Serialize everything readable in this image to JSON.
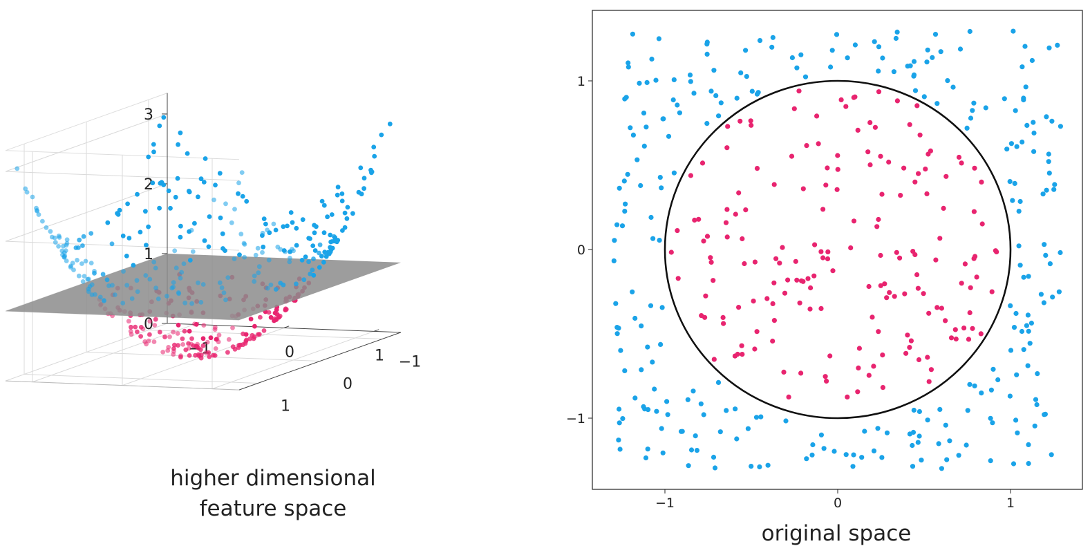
{
  "captions": {
    "left_line1": "higher dimensional",
    "left_line2": "feature space",
    "right": "original space"
  },
  "colors": {
    "inner_class": "#e8246f",
    "outer_class": "#1aa3e8",
    "plane": "#8c8c8c",
    "circle": "#111111"
  },
  "chart_data": [
    {
      "type": "scatter",
      "projection": "3d",
      "title": "",
      "xlabel": "",
      "ylabel": "",
      "zlabel": "",
      "x_ticks": [
        "−1",
        "0",
        "1"
      ],
      "y_ticks": [
        "1",
        "0",
        "−1"
      ],
      "z_ticks": [
        "0",
        "1",
        "2",
        "3"
      ],
      "xlim": [
        -1.3,
        1.3
      ],
      "ylim": [
        -1.3,
        1.3
      ],
      "zlim": [
        0,
        3.3
      ],
      "z_function": "x^2 + y^2",
      "separating_plane_z": 1,
      "grid": true,
      "series": [
        {
          "color": "#e8246f",
          "rule": "x^2 + y^2 < 1"
        },
        {
          "color": "#1aa3e8",
          "rule": "x^2 + y^2 >= 1"
        }
      ]
    },
    {
      "type": "scatter",
      "title": "",
      "xlabel": "",
      "ylabel": "",
      "x_ticks": [
        "−1",
        "0",
        "1"
      ],
      "y_ticks": [
        "1",
        "0",
        "−1"
      ],
      "xlim": [
        -1.35,
        1.35
      ],
      "ylim": [
        -1.35,
        1.35
      ],
      "decision_boundary": {
        "shape": "circle",
        "center": [
          0,
          0
        ],
        "radius": 1
      },
      "grid": false,
      "series": [
        {
          "color": "#e8246f",
          "rule": "inside circle",
          "approx_count": 180
        },
        {
          "color": "#1aa3e8",
          "rule": "outside circle",
          "approx_count": 270
        }
      ]
    }
  ]
}
